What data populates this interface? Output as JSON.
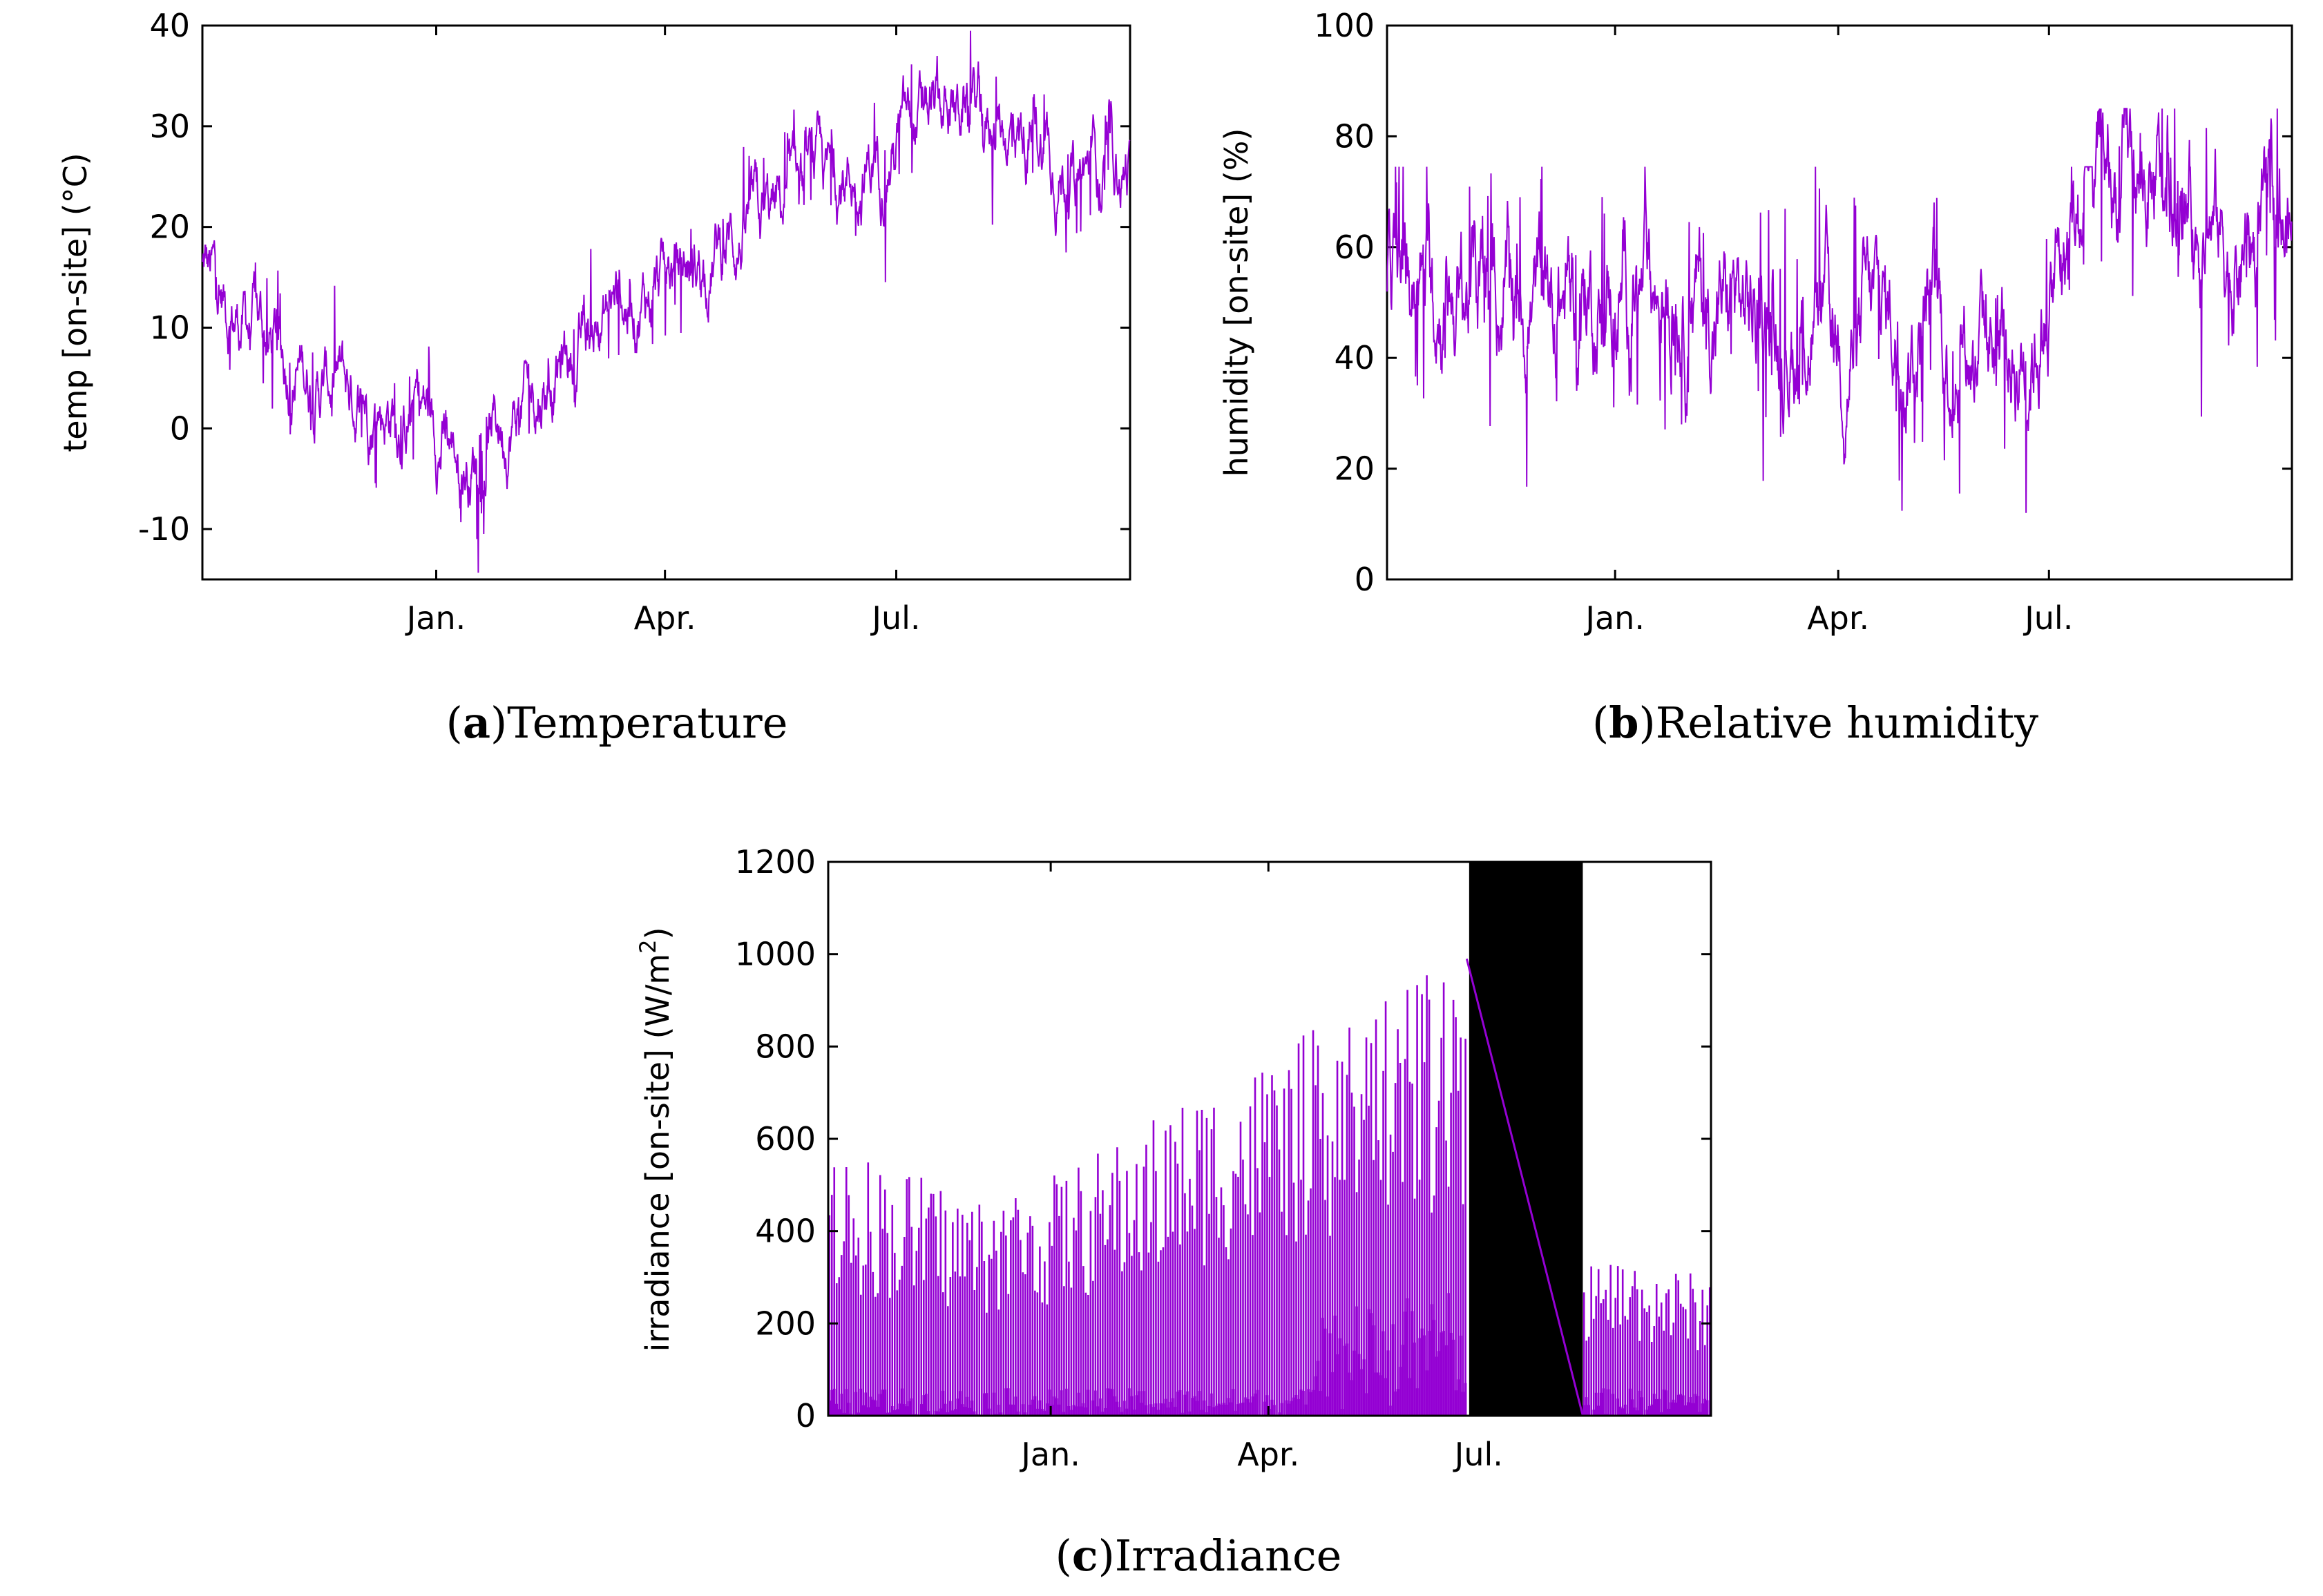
{
  "chart_data": [
    {
      "id": "temperature",
      "type": "line",
      "caption": {
        "open": "(",
        "letter": "a",
        "close": ")",
        "text": "Temperature"
      },
      "ylabel": "temp [on-site] (°C)",
      "ylim": [
        -15,
        40
      ],
      "yticks": [
        -10,
        0,
        10,
        20,
        30,
        40
      ],
      "ytick_labels": [
        "-10",
        "0",
        "10",
        "20",
        "30",
        "40"
      ],
      "x_range_days": [
        0,
        365
      ],
      "xticks": [
        {
          "day": 92,
          "label": "Jan."
        },
        {
          "day": 182,
          "label": "Apr."
        },
        {
          "day": 273,
          "label": "Jul."
        }
      ],
      "series": [
        {
          "name": "temp",
          "color": "#9400d3",
          "x": [
            0,
            10,
            20,
            30,
            45,
            60,
            75,
            85,
            95,
            105,
            115,
            125,
            140,
            155,
            170,
            182,
            195,
            210,
            225,
            240,
            255,
            265,
            275,
            290,
            300,
            310,
            320,
            330,
            340,
            350,
            365
          ],
          "y": [
            16,
            12,
            10,
            8,
            5,
            3,
            2,
            3,
            -1,
            -3,
            0,
            2,
            6,
            10,
            13,
            14,
            17,
            19,
            21,
            23,
            25,
            27,
            29,
            31,
            32,
            31,
            30,
            28,
            26,
            25,
            26
          ],
          "noise": 7
        }
      ]
    },
    {
      "id": "humidity",
      "type": "line",
      "caption": {
        "open": "(",
        "letter": "b",
        "close": ")",
        "text": "Relative humidity"
      },
      "ylabel": "humidity [on-site] (%)",
      "ylim": [
        0,
        100
      ],
      "yticks": [
        0,
        20,
        40,
        60,
        80,
        100
      ],
      "ytick_labels": [
        "0",
        "20",
        "40",
        "60",
        "80",
        "100"
      ],
      "x_range_days": [
        0,
        365
      ],
      "xticks": [
        {
          "day": 92,
          "label": "Jan."
        },
        {
          "day": 182,
          "label": "Apr."
        },
        {
          "day": 267,
          "label": "Jul."
        }
      ],
      "series": [
        {
          "name": "humidity",
          "color": "#9400d3",
          "x": [
            0,
            30,
            60,
            92,
            120,
            150,
            182,
            200,
            230,
            255,
            270,
            285,
            300,
            320,
            340,
            365
          ],
          "y": [
            55,
            52,
            50,
            52,
            50,
            47,
            45,
            46,
            44,
            43,
            55,
            70,
            72,
            68,
            60,
            60
          ],
          "noise": 22
        }
      ]
    },
    {
      "id": "irradiance",
      "type": "line",
      "caption": {
        "open": "(",
        "letter": "c",
        "close": ")",
        "text": "Irradiance"
      },
      "ylabel": "irradiance [on-site] (W/m",
      "ylabel_sup": "2",
      "ylabel_end": ")",
      "ylim": [
        0,
        1200
      ],
      "yticks": [
        0,
        200,
        400,
        600,
        800,
        1000,
        1200
      ],
      "ytick_labels": [
        "0",
        "200",
        "400",
        "600",
        "800",
        "1000",
        "1200"
      ],
      "x_range_days": [
        0,
        365
      ],
      "xticks": [
        {
          "day": 92,
          "label": "Jan."
        },
        {
          "day": 182,
          "label": "Apr."
        },
        {
          "day": 269,
          "label": "Jul."
        }
      ],
      "gap_region_days": [
        265,
        312
      ],
      "series": [
        {
          "name": "irradiance",
          "color": "#9400d3",
          "envelope_x": [
            0,
            30,
            60,
            92,
            120,
            150,
            182,
            210,
            240,
            264,
            312,
            330,
            365
          ],
          "envelope_y": [
            600,
            540,
            480,
            520,
            600,
            700,
            780,
            870,
            940,
            990,
            330,
            350,
            300
          ],
          "gap_line": [
            [
              264,
              990
            ],
            [
              312,
              0
            ]
          ]
        }
      ]
    }
  ]
}
